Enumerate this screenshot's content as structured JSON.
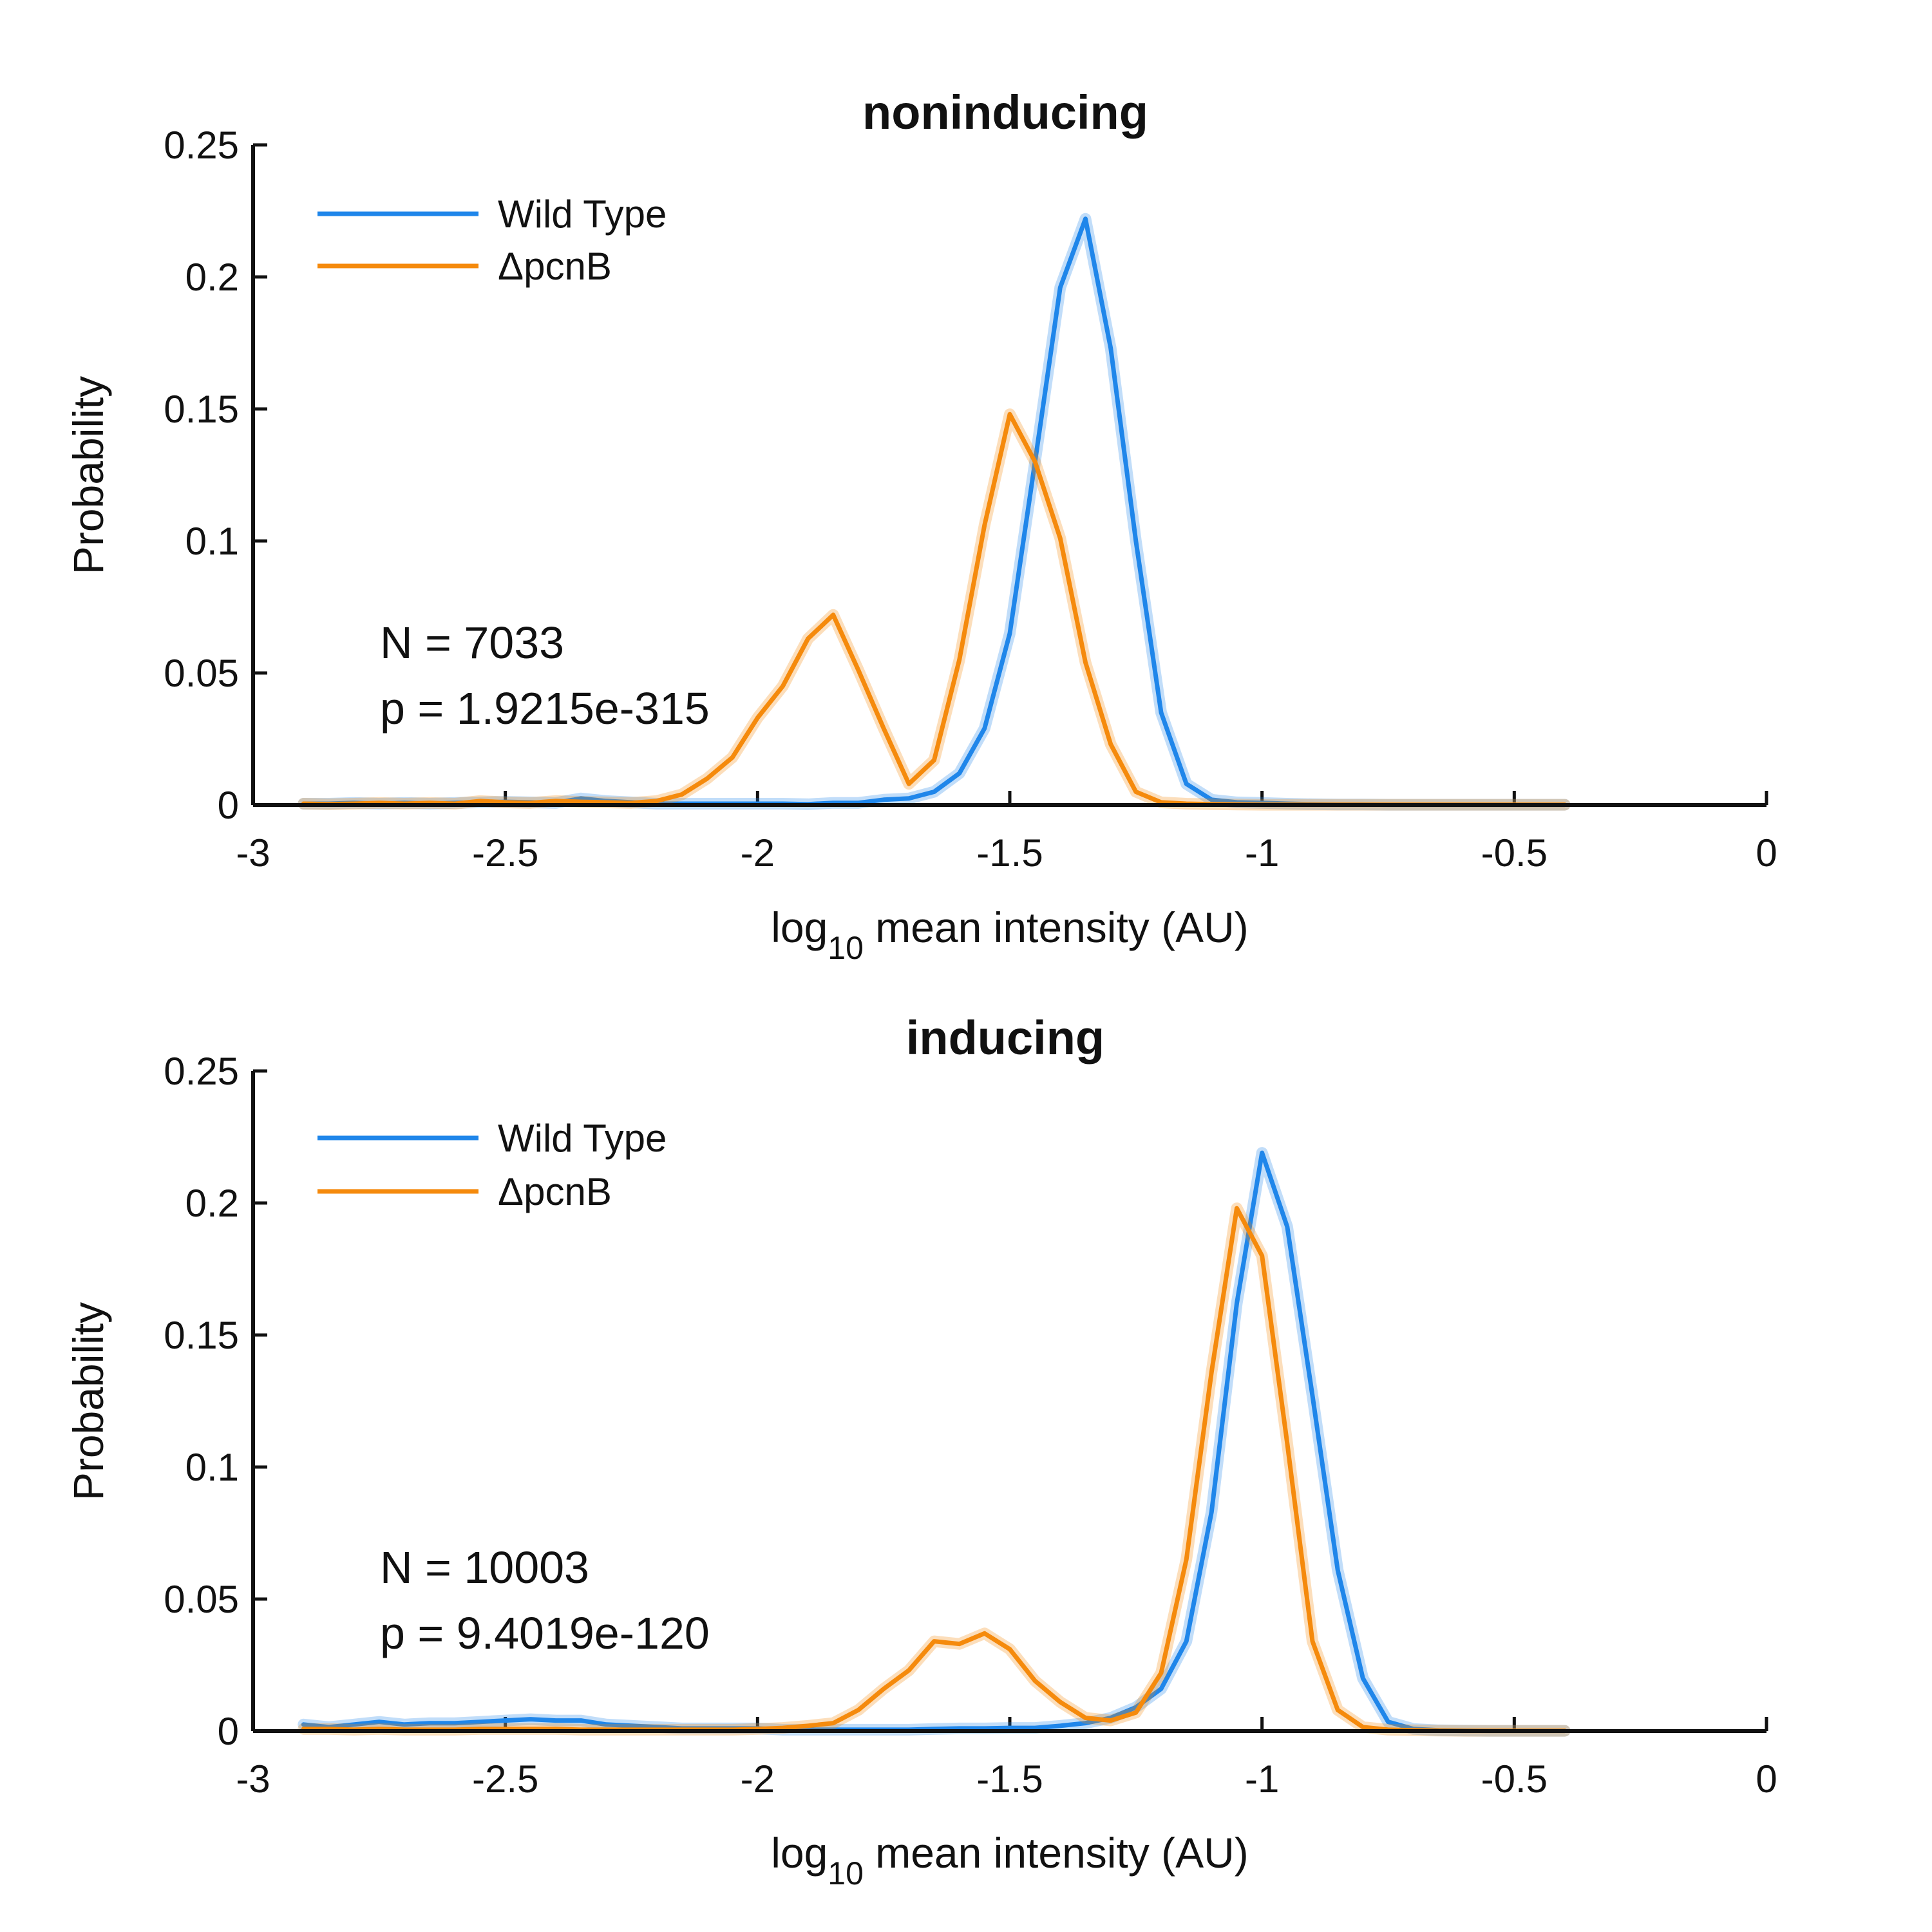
{
  "chart_data": [
    {
      "type": "line",
      "title": "noninducing",
      "xlabel": "log",
      "xlabel_sub": "10",
      "xlabel_rest": " mean intensity (AU)",
      "ylabel": "Probability",
      "xlim": [
        -3,
        0
      ],
      "ylim": [
        0,
        0.25
      ],
      "xticks": [
        -3,
        -2.5,
        -2,
        -1.5,
        -1,
        -0.5,
        0
      ],
      "xtick_labels": [
        "-3",
        "-2.5",
        "-2",
        "-1.5",
        "-1",
        "-0.5",
        "0"
      ],
      "yticks": [
        0,
        0.05,
        0.1,
        0.15,
        0.2,
        0.25
      ],
      "ytick_labels": [
        "0",
        "0.05",
        "0.1",
        "0.15",
        "0.2",
        "0.25"
      ],
      "legend_position": "top-left",
      "annotations": [
        "N = 7033",
        "p = 1.9215e-315"
      ],
      "x": [
        -2.9,
        -2.85,
        -2.8,
        -2.75,
        -2.7,
        -2.65,
        -2.6,
        -2.55,
        -2.5,
        -2.45,
        -2.4,
        -2.35,
        -2.3,
        -2.25,
        -2.2,
        -2.15,
        -2.1,
        -2.05,
        -2.0,
        -1.95,
        -1.9,
        -1.85,
        -1.8,
        -1.75,
        -1.7,
        -1.65,
        -1.6,
        -1.55,
        -1.5,
        -1.45,
        -1.4,
        -1.35,
        -1.3,
        -1.25,
        -1.2,
        -1.15,
        -1.1,
        -1.05,
        -1.0,
        -0.95,
        -0.9,
        -0.85,
        -0.8,
        -0.75,
        -0.7,
        -0.65,
        -0.6,
        -0.55,
        -0.5,
        -0.45,
        -0.4
      ],
      "series": [
        {
          "name": "Wild Type",
          "color": "#1f86ea",
          "values": [
            0.0005,
            0.0005,
            0.0008,
            0.0005,
            0.0008,
            0.0005,
            0.0008,
            0.001,
            0.0012,
            0.001,
            0.0008,
            0.0025,
            0.0015,
            0.001,
            0.0005,
            0.0005,
            0.0005,
            0.0005,
            0.0005,
            0.0005,
            0.0003,
            0.0008,
            0.0008,
            0.002,
            0.0025,
            0.005,
            0.012,
            0.029,
            0.065,
            0.13,
            0.196,
            0.222,
            0.173,
            0.1,
            0.035,
            0.008,
            0.002,
            0.001,
            0.0008,
            0.0005,
            0.0003,
            0.0002,
            0.0002,
            0.0001,
            0.0001,
            0.0001,
            0.0001,
            0.0001,
            0.0001,
            0.0001,
            0.0001
          ]
        },
        {
          "name": "ΔpcnB",
          "color": "#f58a0c",
          "values": [
            0.0005,
            0.0003,
            0.0005,
            0.0008,
            0.0005,
            0.0008,
            0.0005,
            0.0015,
            0.001,
            0.0008,
            0.0015,
            0.0012,
            0.001,
            0.0008,
            0.0015,
            0.004,
            0.01,
            0.018,
            0.033,
            0.045,
            0.063,
            0.072,
            0.051,
            0.029,
            0.008,
            0.017,
            0.055,
            0.106,
            0.148,
            0.13,
            0.101,
            0.054,
            0.023,
            0.005,
            0.001,
            0.0005,
            0.0003,
            0.0002,
            0.0001,
            0.0001,
            0.0001,
            0.0001,
            0.0001,
            0.0001,
            0.0001,
            0.0001,
            0.0001,
            0.0001,
            0.0001,
            0.0001,
            0.0001
          ]
        }
      ]
    },
    {
      "type": "line",
      "title": "inducing",
      "xlabel": "log",
      "xlabel_sub": "10",
      "xlabel_rest": " mean intensity (AU)",
      "ylabel": "Probability",
      "xlim": [
        -3,
        0
      ],
      "ylim": [
        0,
        0.25
      ],
      "xticks": [
        -3,
        -2.5,
        -2,
        -1.5,
        -1,
        -0.5,
        0
      ],
      "xtick_labels": [
        "-3",
        "-2.5",
        "-2",
        "-1.5",
        "-1",
        "-0.5",
        "0"
      ],
      "yticks": [
        0,
        0.05,
        0.1,
        0.15,
        0.2,
        0.25
      ],
      "ytick_labels": [
        "0",
        "0.05",
        "0.1",
        "0.15",
        "0.2",
        "0.25"
      ],
      "legend_position": "top-left",
      "annotations": [
        "N = 10003",
        "p = 9.4019e-120"
      ],
      "x": [
        -2.9,
        -2.85,
        -2.8,
        -2.75,
        -2.7,
        -2.65,
        -2.6,
        -2.55,
        -2.5,
        -2.45,
        -2.4,
        -2.35,
        -2.3,
        -2.25,
        -2.2,
        -2.15,
        -2.1,
        -2.05,
        -2.0,
        -1.95,
        -1.9,
        -1.85,
        -1.8,
        -1.75,
        -1.7,
        -1.65,
        -1.6,
        -1.55,
        -1.5,
        -1.45,
        -1.4,
        -1.35,
        -1.3,
        -1.25,
        -1.2,
        -1.15,
        -1.1,
        -1.05,
        -1.0,
        -0.95,
        -0.9,
        -0.85,
        -0.8,
        -0.75,
        -0.7,
        -0.65,
        -0.6,
        -0.55,
        -0.5,
        -0.45,
        -0.4
      ],
      "series": [
        {
          "name": "Wild Type",
          "color": "#1f86ea",
          "values": [
            0.0025,
            0.0015,
            0.0025,
            0.0035,
            0.0025,
            0.003,
            0.003,
            0.0035,
            0.004,
            0.0045,
            0.004,
            0.004,
            0.0025,
            0.002,
            0.0015,
            0.001,
            0.001,
            0.001,
            0.001,
            0.0005,
            0.0005,
            0.0005,
            0.0005,
            0.0005,
            0.0005,
            0.0008,
            0.001,
            0.001,
            0.0012,
            0.0012,
            0.002,
            0.003,
            0.005,
            0.009,
            0.016,
            0.034,
            0.083,
            0.162,
            0.219,
            0.191,
            0.127,
            0.061,
            0.02,
            0.0035,
            0.0008,
            0.0003,
            0.0002,
            0.0001,
            0.0001,
            0.0001,
            0.0001
          ]
        },
        {
          "name": "ΔpcnB",
          "color": "#f58a0c",
          "values": [
            0.0008,
            0.0008,
            0.0005,
            0.0008,
            0.0005,
            0.0005,
            0.0005,
            0.0008,
            0.0008,
            0.0008,
            0.0008,
            0.0005,
            0.0005,
            0.0005,
            0.0005,
            0.0005,
            0.0005,
            0.0005,
            0.0008,
            0.0012,
            0.002,
            0.003,
            0.008,
            0.016,
            0.023,
            0.034,
            0.033,
            0.037,
            0.031,
            0.019,
            0.011,
            0.005,
            0.004,
            0.007,
            0.022,
            0.065,
            0.136,
            0.198,
            0.18,
            0.109,
            0.034,
            0.008,
            0.0015,
            0.0005,
            0.0003,
            0.0002,
            0.0001,
            0.0001,
            0.0001,
            0.0001,
            0.0001
          ]
        }
      ]
    }
  ]
}
